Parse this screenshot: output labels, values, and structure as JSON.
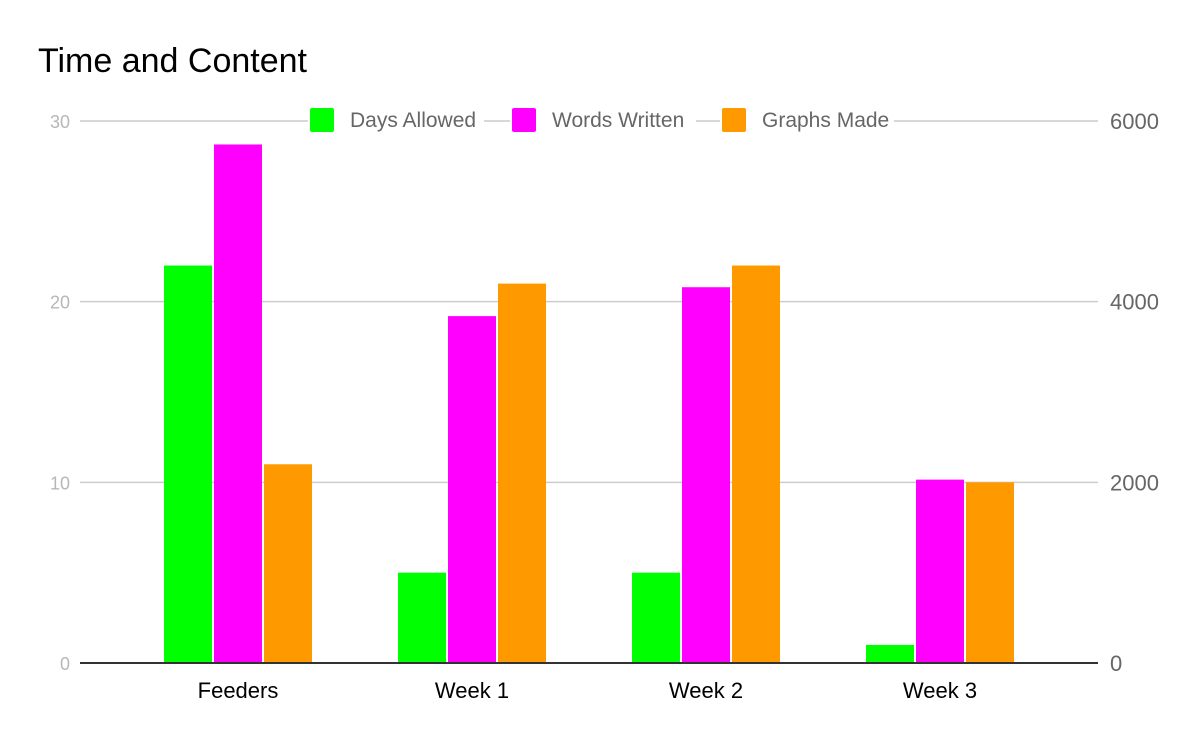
{
  "chart_data": {
    "type": "bar",
    "title": "Time and Content",
    "categories": [
      "Feeders",
      "Week 1",
      "Week 2",
      "Week 3"
    ],
    "series": [
      {
        "name": "Days Allowed",
        "axis": "left",
        "color": "#00ff00",
        "values": [
          22,
          5,
          5,
          1
        ]
      },
      {
        "name": "Words Written",
        "axis": "right",
        "color": "#ff00ff",
        "values": [
          5740,
          3840,
          4160,
          2030
        ]
      },
      {
        "name": "Graphs Made",
        "axis": "left",
        "color": "#ff9900",
        "values": [
          11,
          21,
          22,
          10
        ]
      }
    ],
    "y_left": {
      "ylim": [
        0,
        30
      ],
      "ticks": [
        0,
        10,
        20,
        30
      ]
    },
    "y_right": {
      "ylim": [
        0,
        6000
      ],
      "ticks": [
        0,
        2000,
        4000,
        6000
      ]
    },
    "grid": true,
    "legend_position": "top"
  }
}
